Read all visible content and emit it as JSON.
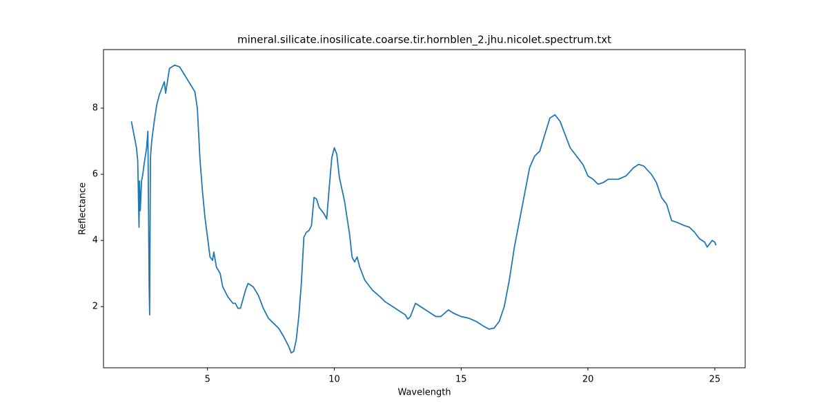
{
  "chart_data": {
    "type": "line",
    "title": "mineral.silicate.inosilicate.coarse.tir.hornblen_2.jhu.nicolet.spectrum.txt",
    "x_label": "Wavelength",
    "y_label": "Reflectance",
    "xlim": [
      0.9,
      26.2
    ],
    "ylim": [
      0.15,
      9.77
    ],
    "xticks": [
      5,
      10,
      15,
      20,
      25
    ],
    "yticks": [
      2,
      4,
      6,
      8
    ],
    "x": [
      2.0,
      2.1,
      2.2,
      2.25,
      2.3,
      2.32,
      2.35,
      2.4,
      2.45,
      2.5,
      2.6,
      2.65,
      2.7,
      2.72,
      2.75,
      2.8,
      2.9,
      3.0,
      3.1,
      3.2,
      3.3,
      3.35,
      3.5,
      3.7,
      3.9,
      4.1,
      4.3,
      4.5,
      4.6,
      4.7,
      4.8,
      4.9,
      5.0,
      5.1,
      5.2,
      5.25,
      5.35,
      5.5,
      5.6,
      5.8,
      6.0,
      6.1,
      6.2,
      6.3,
      6.5,
      6.6,
      6.8,
      7.0,
      7.2,
      7.4,
      7.6,
      7.8,
      8.0,
      8.2,
      8.3,
      8.4,
      8.5,
      8.6,
      8.7,
      8.8,
      8.9,
      9.0,
      9.1,
      9.2,
      9.3,
      9.4,
      9.6,
      9.7,
      9.8,
      9.9,
      10.0,
      10.1,
      10.2,
      10.4,
      10.6,
      10.7,
      10.8,
      10.9,
      11.0,
      11.2,
      11.5,
      11.8,
      12.0,
      12.3,
      12.5,
      12.8,
      12.9,
      13.0,
      13.2,
      13.5,
      13.8,
      14.0,
      14.2,
      14.5,
      14.7,
      15.0,
      15.3,
      15.6,
      15.9,
      16.1,
      16.3,
      16.5,
      16.7,
      16.9,
      17.1,
      17.3,
      17.5,
      17.7,
      17.9,
      18.1,
      18.3,
      18.5,
      18.7,
      18.9,
      19.1,
      19.3,
      19.6,
      19.8,
      20.0,
      20.2,
      20.4,
      20.6,
      20.8,
      21.2,
      21.5,
      21.8,
      22.0,
      22.2,
      22.5,
      22.7,
      22.9,
      23.1,
      23.3,
      23.5,
      23.8,
      24.0,
      24.2,
      24.4,
      24.6,
      24.7,
      24.9,
      25.0,
      25.05
    ],
    "series": [
      {
        "color": "#1f77b4",
        "values": [
          7.6,
          7.2,
          6.8,
          6.4,
          4.4,
          5.8,
          4.9,
          5.8,
          6.0,
          6.3,
          6.8,
          7.3,
          2.6,
          1.75,
          6.5,
          7.0,
          7.6,
          8.1,
          8.4,
          8.6,
          8.8,
          8.45,
          9.2,
          9.3,
          9.25,
          9.0,
          8.75,
          8.5,
          8.0,
          6.5,
          5.5,
          4.7,
          4.1,
          3.5,
          3.4,
          3.65,
          3.2,
          3.0,
          2.6,
          2.3,
          2.1,
          2.1,
          1.95,
          1.95,
          2.5,
          2.7,
          2.6,
          2.35,
          1.95,
          1.65,
          1.5,
          1.35,
          1.1,
          0.8,
          0.6,
          0.65,
          1.0,
          1.7,
          2.7,
          4.1,
          4.25,
          4.3,
          4.45,
          5.3,
          5.25,
          5.0,
          4.8,
          4.65,
          5.6,
          6.5,
          6.8,
          6.6,
          5.9,
          5.2,
          4.2,
          3.5,
          3.35,
          3.5,
          3.2,
          2.8,
          2.5,
          2.3,
          2.15,
          2.0,
          1.9,
          1.75,
          1.62,
          1.7,
          2.1,
          1.95,
          1.8,
          1.7,
          1.7,
          1.9,
          1.8,
          1.7,
          1.65,
          1.55,
          1.4,
          1.32,
          1.35,
          1.55,
          2.0,
          2.8,
          3.8,
          4.6,
          5.4,
          6.2,
          6.55,
          6.7,
          7.2,
          7.7,
          7.8,
          7.6,
          7.2,
          6.8,
          6.5,
          6.3,
          5.95,
          5.85,
          5.7,
          5.75,
          5.85,
          5.85,
          5.95,
          6.2,
          6.3,
          6.25,
          6.0,
          5.75,
          5.3,
          5.1,
          4.6,
          4.55,
          4.45,
          4.4,
          4.25,
          4.05,
          3.95,
          3.8,
          4.0,
          3.95,
          3.85
        ]
      }
    ]
  }
}
